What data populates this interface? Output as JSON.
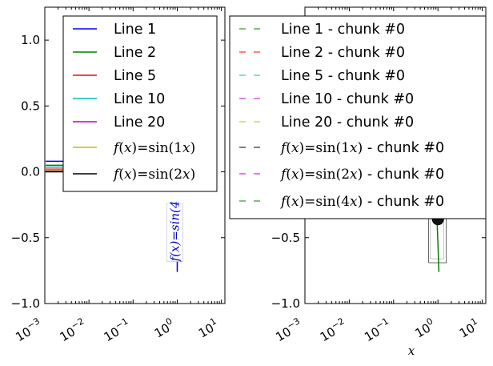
{
  "chart_data": [
    {
      "type": "line",
      "panel": "left",
      "xscale": "log",
      "xlim": [
        0.001,
        12
      ],
      "ylim": [
        -1.0,
        1.25
      ],
      "yticks": [
        "−1.0",
        "−0.5",
        "0.0",
        "0.5",
        "1.0"
      ],
      "xticks": [
        {
          "base": "10",
          "exp": "−3"
        },
        {
          "base": "10",
          "exp": "−2"
        },
        {
          "base": "10",
          "exp": "−1"
        },
        {
          "base": "10",
          "exp": "0"
        },
        {
          "base": "10",
          "exp": "1"
        }
      ],
      "xlabel": "",
      "legend_location": "upper right",
      "series": [
        {
          "name": "Line 1",
          "color": "#0000ff",
          "x": [
            0.001,
            0.0015
          ],
          "y": [
            0.08,
            0.08
          ]
        },
        {
          "name": "Line 2",
          "color": "#008000",
          "x": [
            0.001,
            0.0015
          ],
          "y": [
            0.05,
            0.05
          ]
        },
        {
          "name": "Line 5",
          "color": "#ff0000",
          "x": [
            0.001,
            0.0015
          ],
          "y": [
            0.02,
            0.02
          ]
        },
        {
          "name": "Line 10",
          "color": "#00bfbf",
          "x": [
            0.001,
            0.0015
          ],
          "y": [
            0.035,
            0.035
          ]
        },
        {
          "name": "Line 20",
          "color": "#bf00bf",
          "x": [
            0.001,
            0.0015
          ],
          "y": [
            0.005,
            0.005
          ]
        },
        {
          "name": "f(x)=sin(1x)",
          "math": true,
          "color": "#bfbf00",
          "x": [
            0.001,
            0.0015
          ],
          "y": [
            0.015,
            0.015
          ]
        },
        {
          "name": "f(x)=sin(2x)",
          "math": true,
          "color": "#000000",
          "x": [
            0.001,
            0.0015
          ],
          "y": [
            0.0,
            0.0
          ]
        }
      ],
      "annotation": {
        "text": "f(x)=sin(4",
        "x": 1.0,
        "y": -0.42,
        "color": "#0000cc"
      },
      "annotation_line": {
        "x": [
          1.0,
          1.0
        ],
        "y": [
          -0.63,
          -0.76
        ],
        "color": "#0000cc"
      }
    },
    {
      "type": "line",
      "panel": "right",
      "xscale": "log",
      "xlim": [
        0.001,
        12
      ],
      "ylim": [
        -1.0,
        1.25
      ],
      "yticks": [
        "−1.0",
        "−0.5"
      ],
      "xticks": [
        {
          "base": "10",
          "exp": "−3"
        },
        {
          "base": "10",
          "exp": "−2"
        },
        {
          "base": "10",
          "exp": "−1"
        },
        {
          "base": "10",
          "exp": "0"
        },
        {
          "base": "10",
          "exp": "1"
        }
      ],
      "xlabel": "x",
      "legend_location": "upper center",
      "series": [
        {
          "name": "Line 1 - chunk #0",
          "color": "#008000",
          "dashed": true
        },
        {
          "name": "Line 2 - chunk #0",
          "color": "#ff0000",
          "dashed": true
        },
        {
          "name": "Line 5 - chunk #0",
          "color": "#00bfbf",
          "dashed": true
        },
        {
          "name": "Line 10 - chunk #0",
          "color": "#bf00bf",
          "dashed": true
        },
        {
          "name": "Line 20 - chunk #0",
          "color": "#bfbf00",
          "dashed": true
        },
        {
          "name": "f(x)=sin(1x) - chunk #0",
          "math": true,
          "color": "#000000",
          "dashed": true
        },
        {
          "name": "f(x)=sin(2x) - chunk #0",
          "math": true,
          "color": "#bf00bf",
          "dashed": true
        },
        {
          "name": "f(x)=sin(4x) - chunk #0",
          "math": true,
          "color": "#008000",
          "dashed": true,
          "x": [
            0.95,
            1.0,
            1.05
          ],
          "y": [
            -0.35,
            -0.55,
            -0.76
          ]
        }
      ],
      "marker": {
        "x": 1.0,
        "y": -0.36,
        "color": "#000000"
      },
      "box": {
        "x": [
          0.62,
          1.55
        ],
        "y": [
          -0.69,
          -0.28
        ]
      }
    }
  ]
}
